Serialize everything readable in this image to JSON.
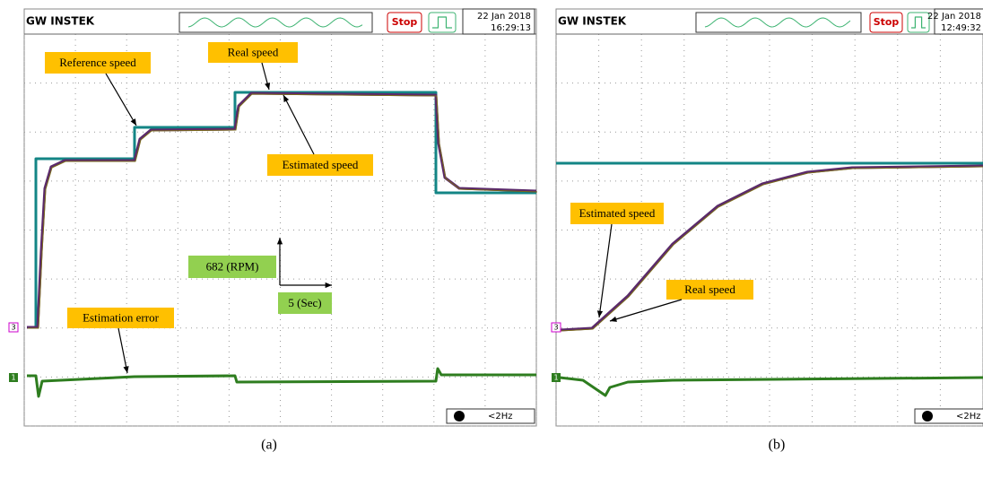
{
  "panels": [
    {
      "brand": "GW INSTEK",
      "date": "22 Jan 2018",
      "time": "16:29:13",
      "stop": "Stop",
      "trigger_rate": "<2Hz",
      "channel_labels": [
        "3",
        "1"
      ],
      "annotations": [
        "Reference speed",
        "Real speed",
        "Estimated speed",
        "Estimation error",
        "682 (RPM)",
        "5 (Sec)"
      ],
      "caption": "(a)"
    },
    {
      "brand": "GW INSTEK",
      "date": "22 Jan 2018",
      "time": "12:49:32",
      "stop": "Stop",
      "trigger_rate": "<2Hz",
      "channel_labels": [
        "3",
        "1"
      ],
      "annotations": [
        "Estimated speed",
        "Real speed"
      ],
      "caption": "(b)"
    }
  ]
}
